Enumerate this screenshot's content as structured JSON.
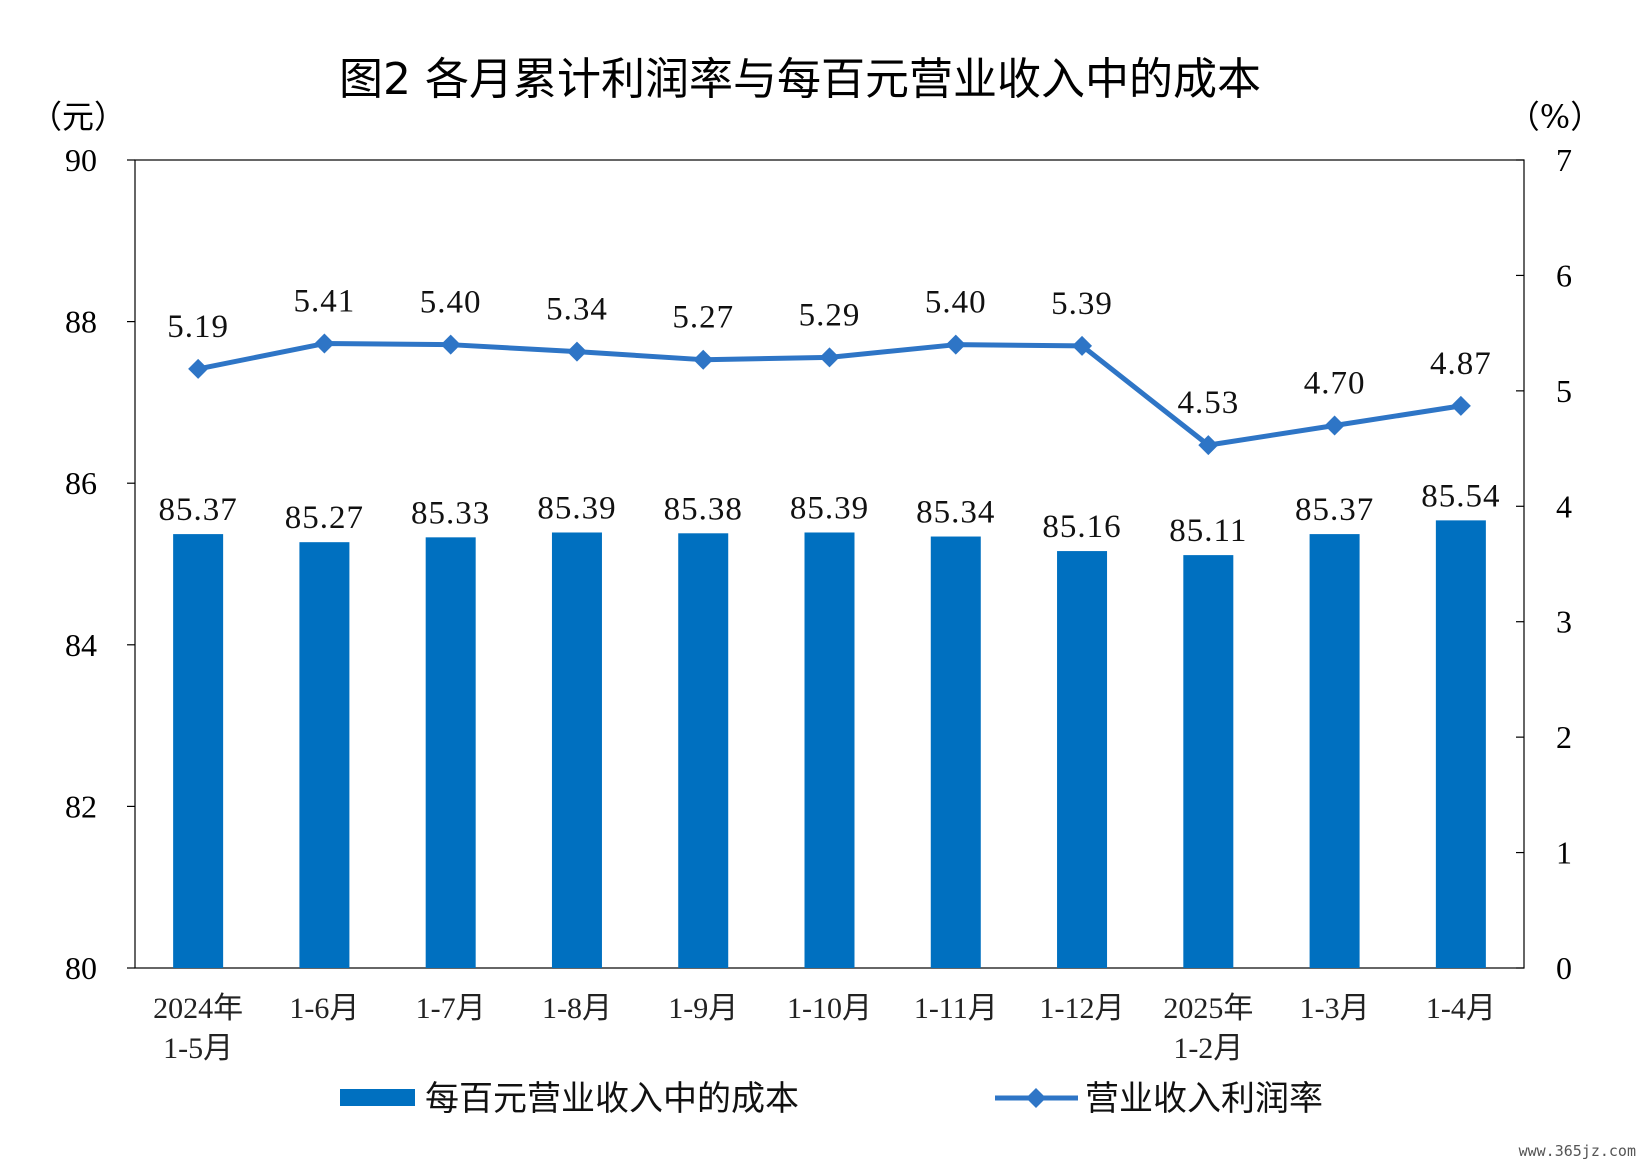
{
  "chart_data": {
    "type": "bar",
    "title": "图2  各月累计利润率与每百元营业收入中的成本",
    "y_left_unit": "（元）",
    "y_right_unit": "（%）",
    "y_left_lim": [
      80,
      90
    ],
    "y_left_ticks": [
      "80",
      "82",
      "84",
      "86",
      "88",
      "90"
    ],
    "y_right_lim": [
      0,
      7
    ],
    "y_right_ticks": [
      "0",
      "1",
      "2",
      "3",
      "4",
      "5",
      "6",
      "7"
    ],
    "categories": [
      [
        "2024年",
        "1-5月"
      ],
      [
        "1-6月"
      ],
      [
        "1-7月"
      ],
      [
        "1-8月"
      ],
      [
        "1-9月"
      ],
      [
        "1-10月"
      ],
      [
        "1-11月"
      ],
      [
        "1-12月"
      ],
      [
        "2025年",
        "1-2月"
      ],
      [
        "1-3月"
      ],
      [
        "1-4月"
      ]
    ],
    "series": [
      {
        "name": "每百元营业收入中的成本",
        "kind": "bar",
        "axis": "left",
        "color": "#0070C0",
        "values": [
          85.37,
          85.27,
          85.33,
          85.39,
          85.38,
          85.39,
          85.34,
          85.16,
          85.11,
          85.37,
          85.54
        ],
        "labels": [
          "85.37",
          "85.27",
          "85.33",
          "85.39",
          "85.38",
          "85.39",
          "85.34",
          "85.16",
          "85.11",
          "85.37",
          "85.54"
        ]
      },
      {
        "name": "营业收入利润率",
        "kind": "line",
        "axis": "right",
        "color": "#2E75C6",
        "marker": "diamond",
        "values": [
          5.19,
          5.41,
          5.4,
          5.34,
          5.27,
          5.29,
          5.4,
          5.39,
          4.53,
          4.7,
          4.87
        ],
        "labels": [
          "5.19",
          "5.41",
          "5.40",
          "5.34",
          "5.27",
          "5.29",
          "5.40",
          "5.39",
          "4.53",
          "4.70",
          "4.87"
        ]
      }
    ],
    "legend_position": "bottom",
    "grid": false
  },
  "watermark": "www.365jz.com"
}
